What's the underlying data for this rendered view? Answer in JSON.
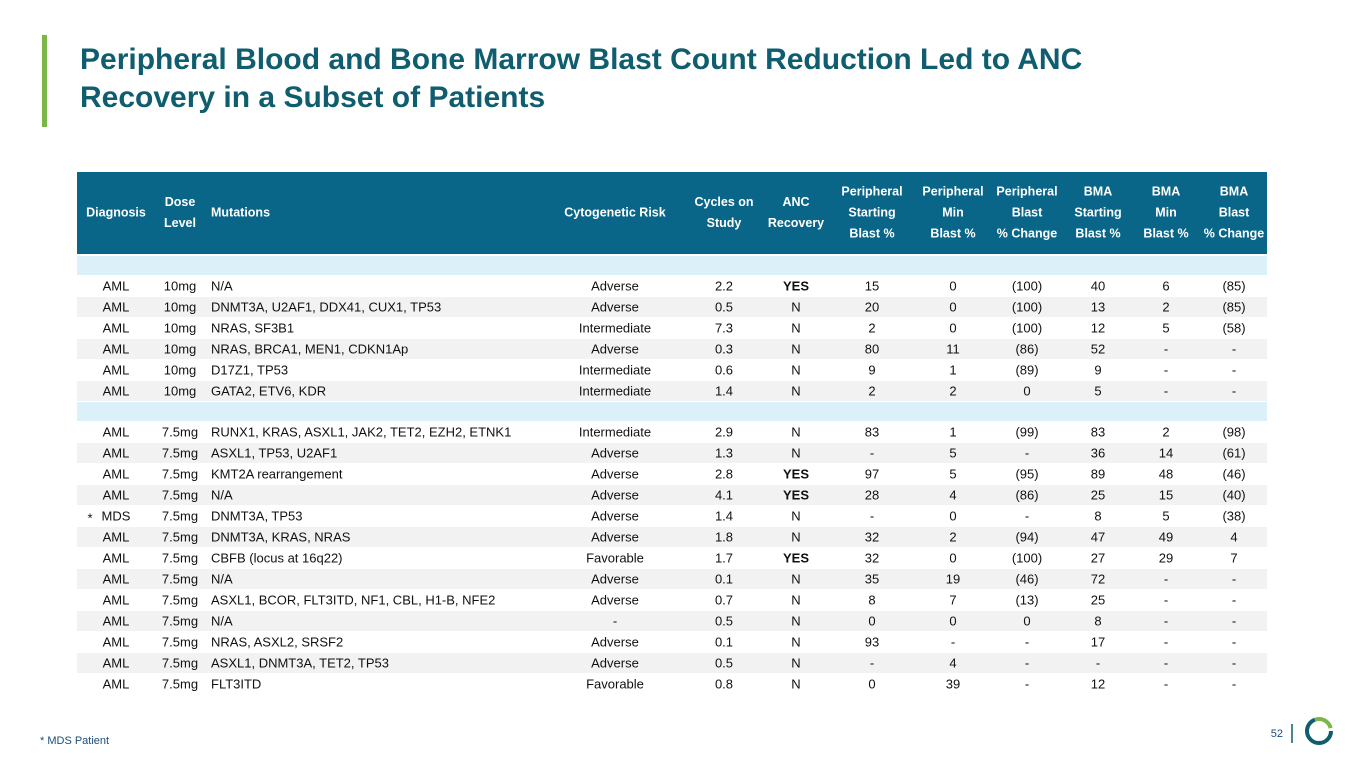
{
  "header": {
    "title": [
      "Peripheral Blood and Bone Marrow Blast Count Reduction Led to ANC",
      "Recovery in a Subset of Patients"
    ]
  },
  "table": {
    "columns": [
      [
        "Diagnosis"
      ],
      [
        "Dose",
        "Level"
      ],
      [
        "Mutations"
      ],
      [
        "Cytogenetic Risk"
      ],
      [
        "Cycles on",
        "Study"
      ],
      [
        "ANC",
        "Recovery"
      ],
      [
        "Peripheral",
        "Starting",
        "Blast %"
      ],
      [
        "Peripheral",
        "Min",
        "Blast %"
      ],
      [
        "Peripheral",
        "Blast",
        "% Change"
      ],
      [
        "BMA",
        "Starting",
        "Blast %"
      ],
      [
        "BMA",
        "Min",
        "Blast %"
      ],
      [
        "BMA",
        "Blast",
        "% Change"
      ]
    ],
    "groups": [
      {
        "rows": [
          {
            "cells": [
              "AML",
              "10mg",
              "N/A",
              "Adverse",
              "2.2",
              {
                "text": "YES",
                "bold": true
              },
              "15",
              "0",
              "(100)",
              "40",
              "6",
              "(85)"
            ]
          },
          {
            "cells": [
              "AML",
              "10mg",
              "DNMT3A, U2AF1, DDX41, CUX1, TP53",
              "Adverse",
              "0.5",
              "N",
              "20",
              "0",
              "(100)",
              "13",
              "2",
              "(85)"
            ]
          },
          {
            "cells": [
              "AML",
              "10mg",
              "NRAS, SF3B1",
              "Intermediate",
              "7.3",
              "N",
              "2",
              "0",
              "(100)",
              "12",
              "5",
              "(58)"
            ]
          },
          {
            "cells": [
              "AML",
              "10mg",
              "NRAS, BRCA1, MEN1, CDKN1Ap",
              "Adverse",
              "0.3",
              "N",
              "80",
              "11",
              "(86)",
              "52",
              "-",
              "-"
            ]
          },
          {
            "cells": [
              "AML",
              "10mg",
              "D17Z1, TP53",
              "Intermediate",
              "0.6",
              "N",
              "9",
              "1",
              "(89)",
              "9",
              "-",
              "-"
            ]
          },
          {
            "cells": [
              "AML",
              "10mg",
              "GATA2, ETV6, KDR",
              "Intermediate",
              "1.4",
              "N",
              "2",
              "2",
              "0",
              "5",
              "-",
              "-"
            ]
          }
        ]
      },
      {
        "rows": [
          {
            "cells": [
              "AML",
              "7.5mg",
              "RUNX1, KRAS, ASXL1, JAK2, TET2, EZH2, ETNK1",
              "Intermediate",
              "2.9",
              "N",
              "83",
              "1",
              "(99)",
              "83",
              "2",
              "(98)"
            ]
          },
          {
            "cells": [
              "AML",
              "7.5mg",
              "ASXL1, TP53, U2AF1",
              "Adverse",
              "1.3",
              "N",
              "-",
              "5",
              "-",
              "36",
              "14",
              "(61)"
            ]
          },
          {
            "cells": [
              "AML",
              "7.5mg",
              "KMT2A rearrangement",
              "Adverse",
              "2.8",
              {
                "text": "YES",
                "bold": true
              },
              "97",
              "5",
              "(95)",
              "89",
              "48",
              "(46)"
            ]
          },
          {
            "cells": [
              "AML",
              "7.5mg",
              "N/A",
              "Adverse",
              "4.1",
              {
                "text": "YES",
                "bold": true
              },
              "28",
              "4",
              "(86)",
              "25",
              "15",
              "(40)"
            ]
          },
          {
            "marker": "*",
            "cells": [
              "MDS",
              "7.5mg",
              "DNMT3A, TP53",
              "Adverse",
              "1.4",
              "N",
              "-",
              "0",
              "-",
              "8",
              "5",
              "(38)"
            ]
          },
          {
            "cells": [
              "AML",
              "7.5mg",
              "DNMT3A, KRAS, NRAS",
              "Adverse",
              "1.8",
              "N",
              "32",
              "2",
              "(94)",
              "47",
              "49",
              "4"
            ]
          },
          {
            "cells": [
              "AML",
              "7.5mg",
              "CBFB (locus at 16q22)",
              "Favorable",
              "1.7",
              {
                "text": "YES",
                "bold": true
              },
              "32",
              "0",
              "(100)",
              "27",
              "29",
              "7"
            ]
          },
          {
            "cells": [
              "AML",
              "7.5mg",
              "N/A",
              "Adverse",
              "0.1",
              "N",
              "35",
              "19",
              "(46)",
              "72",
              "-",
              "-"
            ]
          },
          {
            "cells": [
              "AML",
              "7.5mg",
              "ASXL1, BCOR, FLT3ITD, NF1, CBL, H1-B, NFE2",
              "Adverse",
              "0.7",
              "N",
              "8",
              "7",
              "(13)",
              "25",
              "-",
              "-"
            ]
          },
          {
            "cells": [
              "AML",
              "7.5mg",
              "N/A",
              "-",
              "0.5",
              "N",
              "0",
              "0",
              "0",
              "8",
              "-",
              "-"
            ]
          },
          {
            "cells": [
              "AML",
              "7.5mg",
              "NRAS, ASXL2, SRSF2",
              "Adverse",
              "0.1",
              "N",
              "93",
              "-",
              "-",
              "17",
              "-",
              "-"
            ]
          },
          {
            "cells": [
              "AML",
              "7.5mg",
              "ASXL1, DNMT3A, TET2, TP53",
              "Adverse",
              "0.5",
              "N",
              "-",
              "4",
              "-",
              "-",
              "-",
              "-"
            ]
          },
          {
            "cells": [
              "AML",
              "7.5mg",
              "FLT3ITD",
              "Favorable",
              "0.8",
              "N",
              "0",
              "39",
              "-",
              "12",
              "-",
              "-"
            ]
          }
        ]
      }
    ]
  },
  "footer": {
    "footnote": "* MDS Patient",
    "page_number": "52"
  }
}
